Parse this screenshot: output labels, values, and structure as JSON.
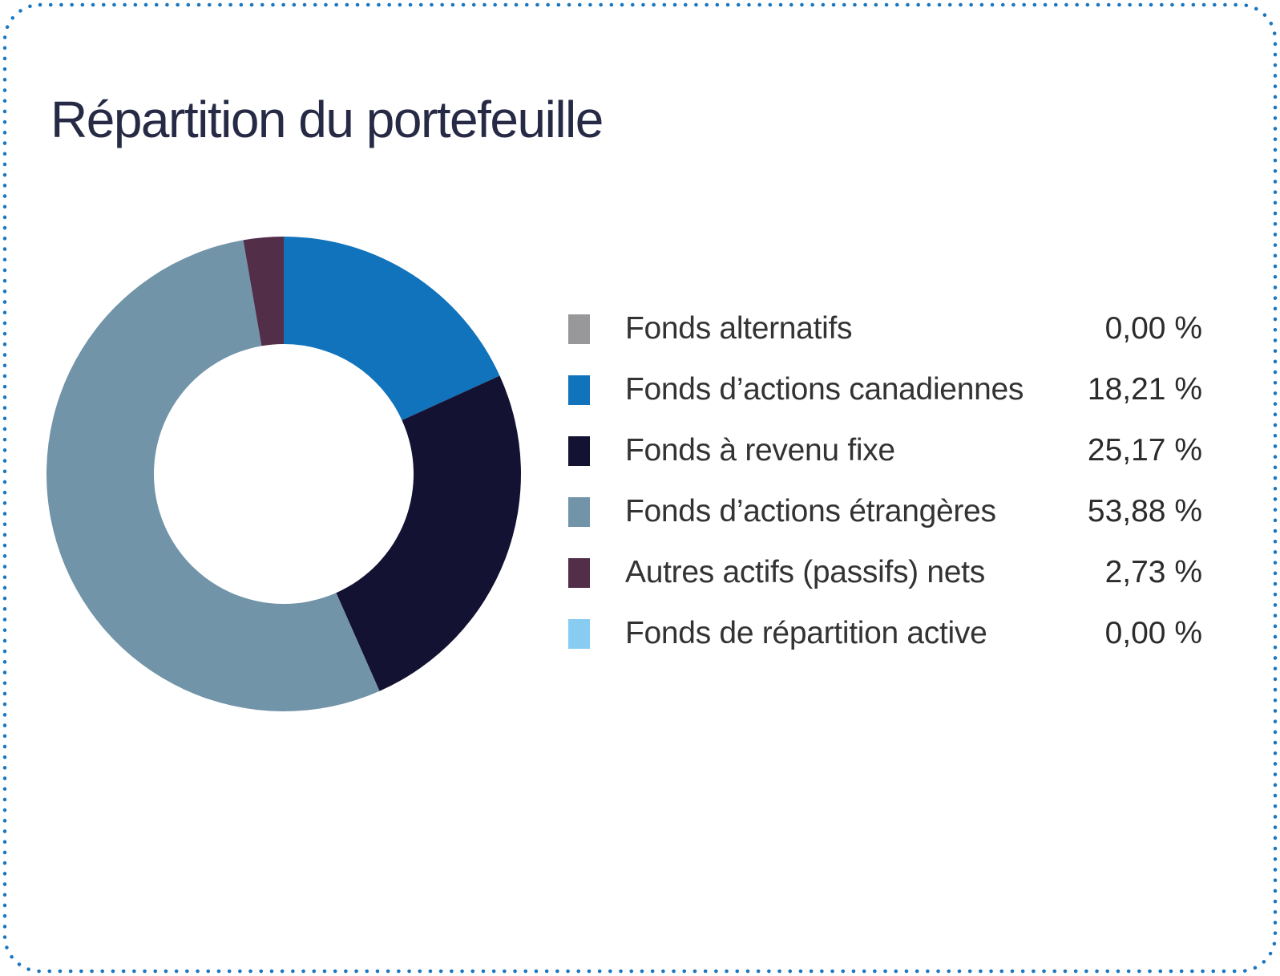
{
  "border_color": "#1a76bf",
  "chart_data": {
    "type": "pie",
    "donut": true,
    "title": "Répartition du portefeuille",
    "legend_position": "right",
    "start_angle_deg": -90,
    "direction": "clockwise",
    "items": [
      {
        "label": "Fonds alternatifs",
        "value": 0.0,
        "value_display": "0,00 %",
        "color": "#98989a"
      },
      {
        "label": "Fonds d’actions canadiennes",
        "value": 18.21,
        "value_display": "18,21 %",
        "color": "#1173bc"
      },
      {
        "label": "Fonds à revenu fixe",
        "value": 25.17,
        "value_display": "25,17 %",
        "color": "#141233"
      },
      {
        "label": "Fonds d’actions étrangères",
        "value": 53.88,
        "value_display": "53,88 %",
        "color": "#7194a9"
      },
      {
        "label": "Autres actifs (passifs) nets",
        "value": 2.73,
        "value_display": "2,73 %",
        "color": "#522e49"
      },
      {
        "label": "Fonds de répartition active",
        "value": 0.0,
        "value_display": "0,00 %",
        "color": "#88ccf2"
      }
    ]
  }
}
